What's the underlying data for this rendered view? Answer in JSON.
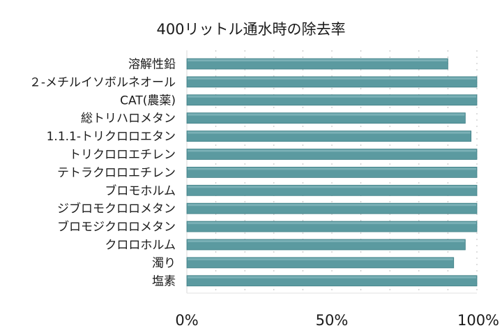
{
  "chart_data": {
    "type": "bar",
    "orientation": "horizontal",
    "title": "400リットル通水時の除去率",
    "xlabel": "",
    "ylabel": "",
    "xlim": [
      0,
      100
    ],
    "x_ticks": [
      "0%",
      "50%",
      "100%"
    ],
    "grid": true,
    "bar_color": "#5b9aa0",
    "categories": [
      "溶解性鉛",
      "２-メチルイソボルネオール",
      "CAT(農薬)",
      "総トリハロメタン",
      "1.1.1-トリクロロエタン",
      "トリクロロエチレン",
      "テトラクロロエチレン",
      "ブロモホルム",
      "ジブロモクロロメタン",
      "ブロモジクロロメタン",
      "クロロホルム",
      "濁り",
      "塩素"
    ],
    "values": [
      90,
      100,
      100,
      96,
      98,
      100,
      100,
      100,
      100,
      100,
      96,
      92,
      100
    ]
  }
}
